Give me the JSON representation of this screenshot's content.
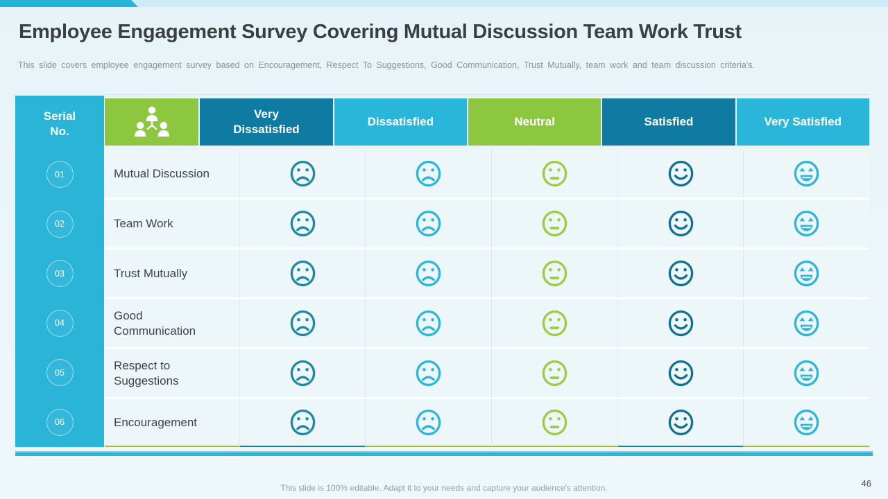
{
  "slide": {
    "title": "Employee Engagement Survey Covering Mutual Discussion Team Work Trust",
    "subtitle": "This slide covers employee engagement survey based on Encouragement, Respect To Suggestions, Good Communication, Trust Mutually, team work and team discussion criteria's.",
    "footer": "This slide is 100% editable. Adapt it to your needs and capture your audience's attention.",
    "page_number": "46"
  },
  "colors": {
    "cyan": "#29b6da",
    "dark_teal": "#0f7ba2",
    "green": "#8dc63f",
    "top_strip_light": "#cdecf6",
    "background": "#ecf6fa",
    "row_background": "#edf6f9",
    "bottom_border_green": "#a2bc41",
    "bottom_border_teal": "#1d7fa3",
    "divider": "#2ab7da"
  },
  "table": {
    "serial_header": "Serial No.",
    "criteria_icon": "team-hierarchy-icon",
    "label_column_bottom_border": "#a2bc41",
    "columns": [
      {
        "label": "Very Dissatisfied",
        "header_color": "#0f7ba2",
        "face": "sad-face",
        "face_color": "#1e8aa4",
        "bottom_border": "#1d7fa3"
      },
      {
        "label": "Dissatisfied",
        "header_color": "#29b6da",
        "face": "sad-face",
        "face_color": "#2cb6da",
        "bottom_border": "#a2bc41"
      },
      {
        "label": "Neutral",
        "header_color": "#8dc63f",
        "face": "neutral-face",
        "face_color": "#9dcb49",
        "bottom_border": "#a2bc41"
      },
      {
        "label": "Satisfied",
        "header_color": "#0f7ba2",
        "face": "smiley-face",
        "face_color": "#15718f",
        "bottom_border": "#1d7fa3"
      },
      {
        "label": "Very Satisfied",
        "header_color": "#29b6da",
        "face": "grinning-face",
        "face_color": "#2cb6da",
        "bottom_border": "#a2bc41"
      }
    ],
    "rows": [
      {
        "serial": "01",
        "label": "Mutual Discussion"
      },
      {
        "serial": "02",
        "label": "Team Work"
      },
      {
        "serial": "03",
        "label": "Trust Mutually"
      },
      {
        "serial": "04",
        "label": "Good\nCommunication"
      },
      {
        "serial": "05",
        "label": "Respect to\nSuggestions"
      },
      {
        "serial": "06",
        "label": "Encouragement"
      }
    ]
  }
}
